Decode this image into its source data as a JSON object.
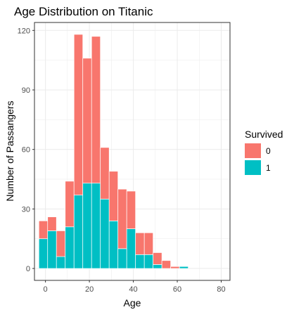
{
  "chart_data": {
    "type": "bar",
    "title": "Age Distribution on Titanic",
    "xlabel": "Age",
    "ylabel": "Number of Passangers",
    "xlim": [
      -5,
      84
    ],
    "ylim": [
      -6,
      124
    ],
    "xticks": [
      0,
      20,
      40,
      60,
      80
    ],
    "yticks": [
      0,
      30,
      60,
      90,
      120
    ],
    "grid": true,
    "stacked": true,
    "bin_width": 4,
    "bin_starts": [
      -3,
      1,
      5,
      9,
      13,
      17,
      21,
      25,
      29,
      33,
      37,
      41,
      45,
      49,
      53,
      57,
      61,
      65,
      69,
      73,
      77,
      81
    ],
    "legend": {
      "title": "Survived",
      "position": "right",
      "entries": [
        {
          "label": "0",
          "color": "#F8766D"
        },
        {
          "label": "1",
          "color": "#00BFC4"
        }
      ]
    },
    "series": [
      {
        "name": "1",
        "color": "#00BFC4",
        "values": [
          15,
          19,
          6,
          21,
          37,
          43,
          43,
          35,
          24,
          10,
          20,
          7,
          7,
          2,
          0,
          0,
          1,
          0,
          0,
          0,
          0,
          0
        ]
      },
      {
        "name": "0",
        "color": "#F8766D",
        "values": [
          9,
          7,
          13,
          23,
          81,
          63,
          74,
          26,
          25,
          30,
          19,
          11,
          11,
          6,
          4,
          1,
          0,
          0,
          0,
          0,
          0,
          0
        ]
      }
    ]
  }
}
